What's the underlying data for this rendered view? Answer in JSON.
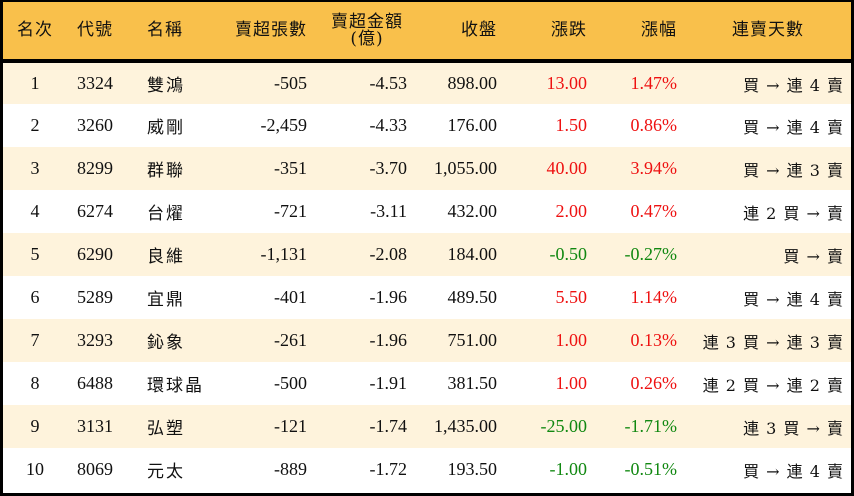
{
  "table": {
    "headers": {
      "rank": "名次",
      "code": "代號",
      "name": "名稱",
      "net_sell_lots": "賣超張數",
      "net_sell_amount_line1": "賣超金額",
      "net_sell_amount_line2": "(億)",
      "close": "收盤",
      "change": "漲跌",
      "change_pct": "漲幅",
      "streak": "連賣天數"
    },
    "colors": {
      "header_bg": "#F9C04B",
      "row_odd_bg": "#FEF3DC",
      "row_even_bg": "#FFFFFF",
      "up": "#EE1111",
      "down": "#118811"
    },
    "rows": [
      {
        "rank": "1",
        "code": "3324",
        "name": "雙鴻",
        "net_sell_lots": "-505",
        "net_sell_amount": "-4.53",
        "close": "898.00",
        "change": "13.00",
        "change_pct": "1.47%",
        "direction": "up",
        "streak": "買 → 連 4 賣"
      },
      {
        "rank": "2",
        "code": "3260",
        "name": "威剛",
        "net_sell_lots": "-2,459",
        "net_sell_amount": "-4.33",
        "close": "176.00",
        "change": "1.50",
        "change_pct": "0.86%",
        "direction": "up",
        "streak": "買 → 連 4 賣"
      },
      {
        "rank": "3",
        "code": "8299",
        "name": "群聯",
        "net_sell_lots": "-351",
        "net_sell_amount": "-3.70",
        "close": "1,055.00",
        "change": "40.00",
        "change_pct": "3.94%",
        "direction": "up",
        "streak": "買 → 連 3 賣"
      },
      {
        "rank": "4",
        "code": "6274",
        "name": "台燿",
        "net_sell_lots": "-721",
        "net_sell_amount": "-3.11",
        "close": "432.00",
        "change": "2.00",
        "change_pct": "0.47%",
        "direction": "up",
        "streak": "連 2 買 → 賣"
      },
      {
        "rank": "5",
        "code": "6290",
        "name": "良維",
        "net_sell_lots": "-1,131",
        "net_sell_amount": "-2.08",
        "close": "184.00",
        "change": "-0.50",
        "change_pct": "-0.27%",
        "direction": "down",
        "streak": "買 → 賣"
      },
      {
        "rank": "6",
        "code": "5289",
        "name": "宜鼎",
        "net_sell_lots": "-401",
        "net_sell_amount": "-1.96",
        "close": "489.50",
        "change": "5.50",
        "change_pct": "1.14%",
        "direction": "up",
        "streak": "買 → 連 4 賣"
      },
      {
        "rank": "7",
        "code": "3293",
        "name": "鈊象",
        "net_sell_lots": "-261",
        "net_sell_amount": "-1.96",
        "close": "751.00",
        "change": "1.00",
        "change_pct": "0.13%",
        "direction": "up",
        "streak": "連 3 買 → 連 3 賣"
      },
      {
        "rank": "8",
        "code": "6488",
        "name": "環球晶",
        "net_sell_lots": "-500",
        "net_sell_amount": "-1.91",
        "close": "381.50",
        "change": "1.00",
        "change_pct": "0.26%",
        "direction": "up",
        "streak": "連 2 買 → 連 2 賣"
      },
      {
        "rank": "9",
        "code": "3131",
        "name": "弘塑",
        "net_sell_lots": "-121",
        "net_sell_amount": "-1.74",
        "close": "1,435.00",
        "change": "-25.00",
        "change_pct": "-1.71%",
        "direction": "down",
        "streak": "連 3 買 → 賣"
      },
      {
        "rank": "10",
        "code": "8069",
        "name": "元太",
        "net_sell_lots": "-889",
        "net_sell_amount": "-1.72",
        "close": "193.50",
        "change": "-1.00",
        "change_pct": "-0.51%",
        "direction": "down",
        "streak": "買 → 連 4 賣"
      }
    ]
  }
}
